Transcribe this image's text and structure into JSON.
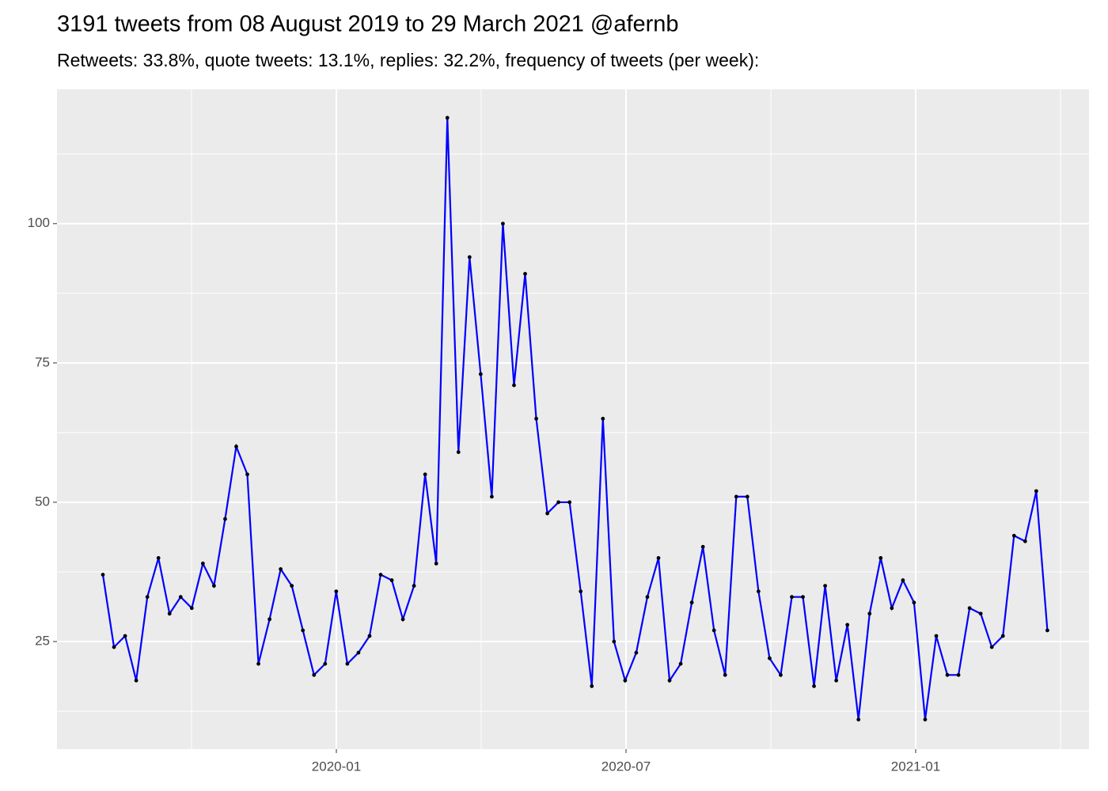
{
  "chart_data": {
    "type": "line",
    "title": "3191 tweets from 08 August 2019 to 29 March 2021 @afernb",
    "subtitle": "Retweets: 33.8%, quote tweets: 13.1%, replies: 32.2%, frequency of tweets (per week):",
    "series": [
      {
        "color": "#0000ff",
        "point_color": "#000000",
        "values": [
          37,
          24,
          26,
          18,
          33,
          40,
          30,
          33,
          31,
          39,
          35,
          47,
          60,
          55,
          21,
          29,
          38,
          35,
          27,
          19,
          21,
          34,
          21,
          23,
          26,
          37,
          36,
          29,
          35,
          55,
          39,
          119,
          59,
          94,
          73,
          51,
          100,
          71,
          91,
          65,
          48,
          50,
          50,
          34,
          17,
          65,
          25,
          18,
          23,
          33,
          40,
          18,
          21,
          32,
          42,
          27,
          19,
          51,
          51,
          34,
          22,
          19,
          33,
          33,
          17,
          35,
          18,
          28,
          11,
          30,
          40,
          31,
          36,
          32,
          11,
          26,
          19,
          19,
          31,
          30,
          24,
          26,
          44,
          43,
          52,
          27
        ]
      }
    ],
    "xticks": [
      "2020-01",
      "2020-07",
      "2021-01"
    ],
    "ylim": [
      5.7,
      124.1
    ],
    "yticks": [
      25,
      50,
      75,
      100
    ],
    "grid": true
  }
}
